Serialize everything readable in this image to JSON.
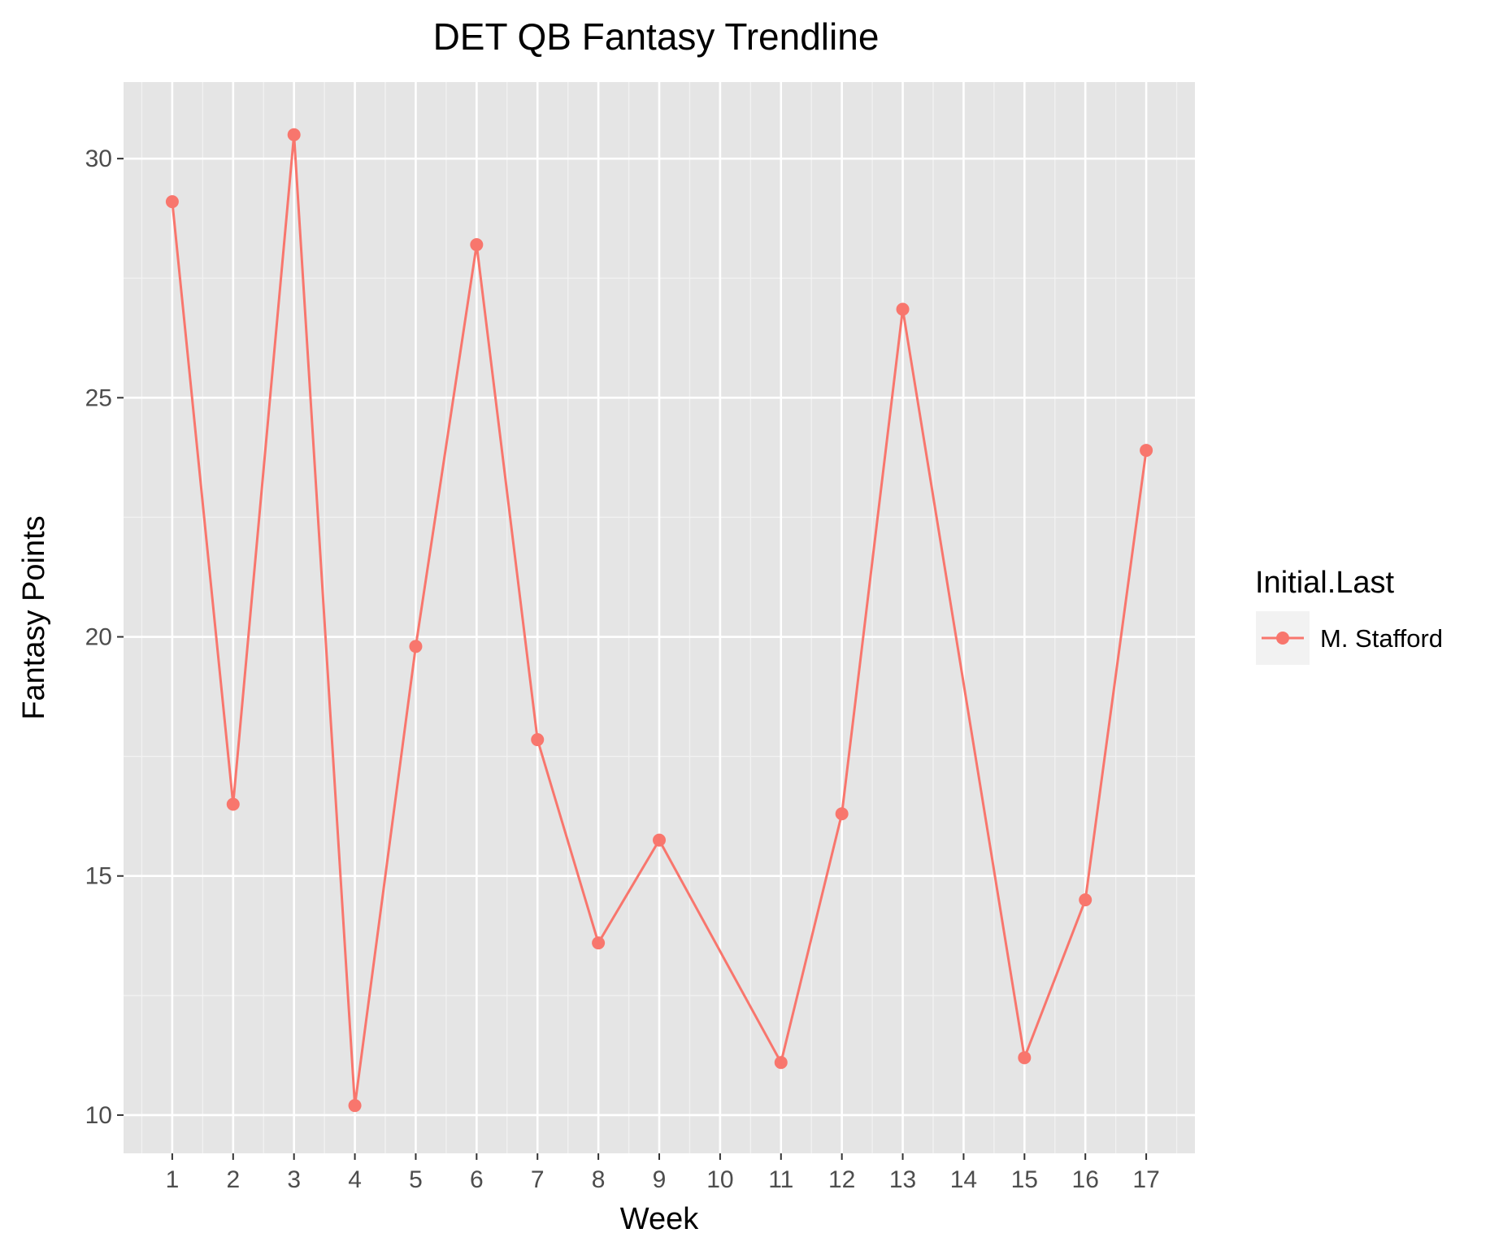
{
  "chart_data": {
    "type": "line",
    "title": "DET QB Fantasy Trendline",
    "xlabel": "Week",
    "ylabel": "Fantasy Points",
    "x": [
      1,
      2,
      3,
      4,
      5,
      6,
      7,
      8,
      9,
      10,
      11,
      12,
      13,
      14,
      15,
      16,
      17
    ],
    "x_tick_labels": [
      "1",
      "2",
      "3",
      "4",
      "5",
      "6",
      "7",
      "8",
      "9",
      "10",
      "11",
      "12",
      "13",
      "14",
      "15",
      "16",
      "17"
    ],
    "y_ticks": [
      10,
      15,
      20,
      25,
      30
    ],
    "y_tick_labels": [
      "10",
      "15",
      "20",
      "25",
      "30"
    ],
    "xlim": [
      0.2,
      17.8
    ],
    "ylim": [
      9.2,
      31.6
    ],
    "grid": true,
    "legend": {
      "title": "Initial.Last",
      "placement": "right"
    },
    "series": [
      {
        "name": "M. Stafford",
        "color": "#F8766D",
        "points": [
          {
            "x": 1,
            "y": 29.1
          },
          {
            "x": 2,
            "y": 16.5
          },
          {
            "x": 3,
            "y": 30.5
          },
          {
            "x": 4,
            "y": 10.2
          },
          {
            "x": 5,
            "y": 19.8
          },
          {
            "x": 6,
            "y": 28.2
          },
          {
            "x": 7,
            "y": 17.85
          },
          {
            "x": 8,
            "y": 13.6
          },
          {
            "x": 9,
            "y": 15.75
          },
          {
            "x": 11,
            "y": 11.1
          },
          {
            "x": 12,
            "y": 16.3
          },
          {
            "x": 13,
            "y": 26.85
          },
          {
            "x": 15,
            "y": 11.2
          },
          {
            "x": 16,
            "y": 14.5
          },
          {
            "x": 17,
            "y": 23.9
          }
        ]
      }
    ]
  }
}
